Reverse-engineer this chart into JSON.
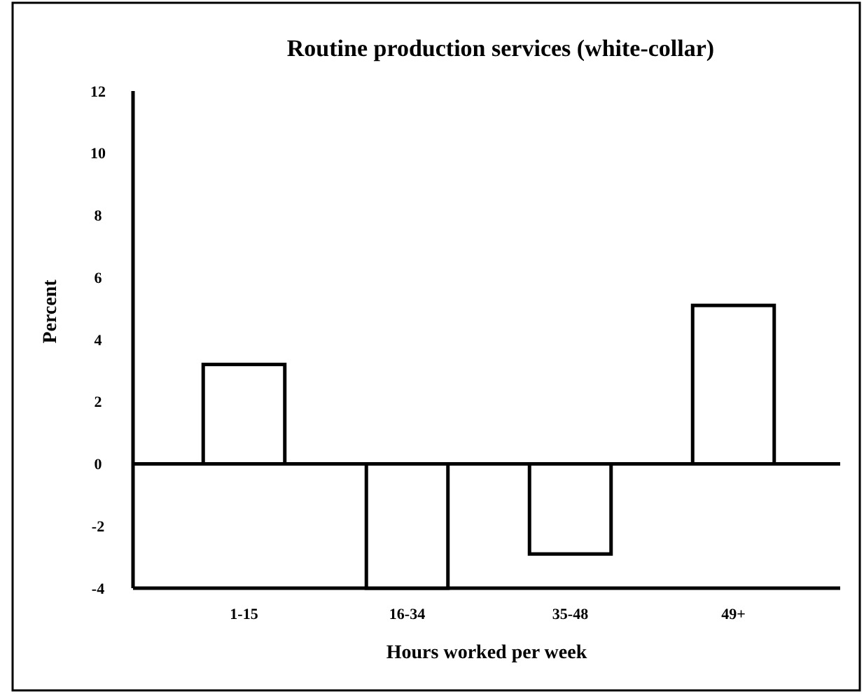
{
  "chart_data": {
    "type": "bar",
    "title": "Routine production services (white-collar)",
    "xlabel": "Hours worked per week",
    "ylabel": "Percent",
    "categories": [
      "1-15",
      "16-34",
      "35-48",
      "49+"
    ],
    "values": [
      3.2,
      -4,
      -2.9,
      5.1
    ],
    "color": "#ffffff",
    "ylim": [
      -4,
      12
    ],
    "yticks": [
      -4,
      -2,
      0,
      2,
      4,
      6,
      8,
      10,
      12
    ]
  }
}
